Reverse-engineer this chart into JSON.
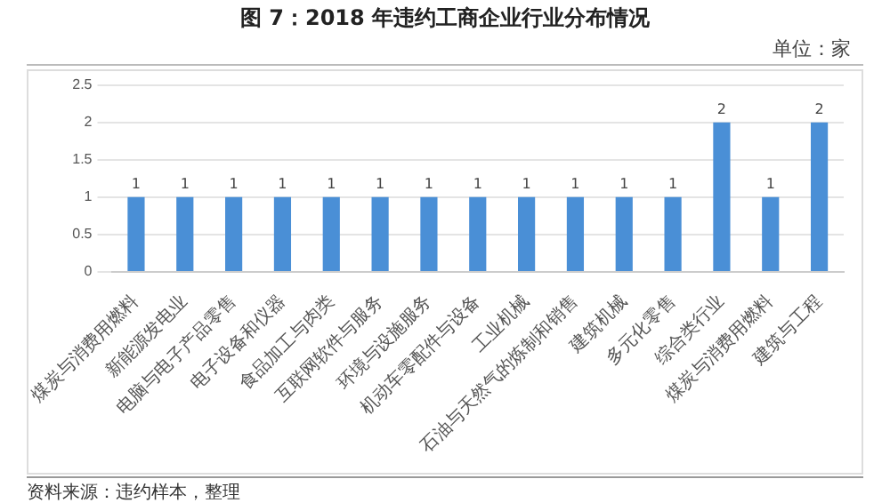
{
  "chart_data": {
    "type": "bar",
    "title": "图 7：2018 年违约工商企业行业分布情况",
    "subtitle": "单位：家",
    "categories": [
      "煤炭与消费用燃料",
      "新能源发电业",
      "电脑与电子产品零售",
      "电子设备和仪器",
      "食品加工与肉类",
      "互联网软件与服务",
      "环境与设施服务",
      "机动车零配件与设备",
      "工业机械",
      "石油与天然气的炼制和销售",
      "建筑机械",
      "多元化零售",
      "综合类行业",
      "煤炭与消费用燃料",
      "建筑与工程"
    ],
    "values": [
      1,
      1,
      1,
      1,
      1,
      1,
      1,
      1,
      1,
      1,
      1,
      1,
      2,
      1,
      2
    ],
    "color": "#4a8fd6",
    "ylim": [
      0,
      2.5
    ],
    "yticks": [
      0,
      0.5,
      1,
      1.5,
      2,
      2.5
    ],
    "grid": "y",
    "data_labels": true,
    "annotations": [
      "资料来源：违约样本，整理"
    ]
  }
}
